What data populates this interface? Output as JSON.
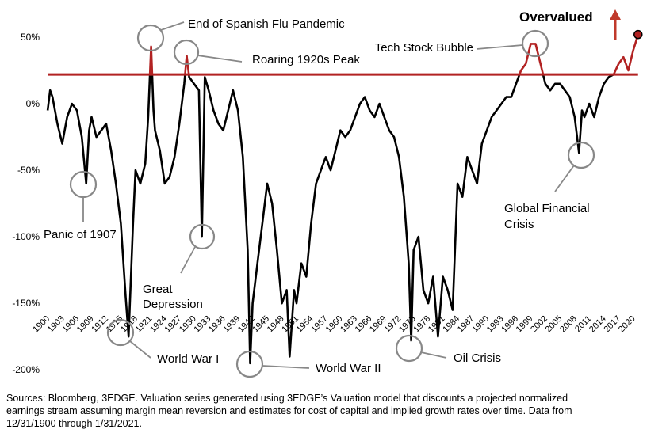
{
  "chart_data": {
    "type": "line",
    "x": [
      1900,
      1900.5,
      1901,
      1902,
      1903,
      1904,
      1905,
      1906,
      1907,
      1907.9,
      1908.5,
      1909,
      1910,
      1911,
      1912,
      1913,
      1914,
      1915,
      1916,
      1916.6,
      1917.5,
      1918,
      1919,
      1920,
      1920.6,
      1921.2,
      1921.7,
      1922,
      1923,
      1924,
      1925,
      1926,
      1927,
      1928,
      1928.5,
      1929,
      1930,
      1931,
      1931.6,
      1932.2,
      1933,
      1934,
      1935,
      1936,
      1937,
      1938,
      1939,
      1940,
      1941,
      1941.5,
      1942,
      1943,
      1944,
      1945,
      1946,
      1947,
      1948,
      1949,
      1949.6,
      1950.5,
      1951,
      1952,
      1953,
      1954,
      1955,
      1956,
      1957,
      1958,
      1959,
      1960,
      1961,
      1962,
      1963,
      1964,
      1965,
      1966,
      1967,
      1968,
      1969,
      1970,
      1971,
      1972,
      1973,
      1974,
      1974.5,
      1975,
      1976,
      1977,
      1978,
      1979,
      1980,
      1981,
      1982,
      1983,
      1984,
      1985,
      1986,
      1987,
      1988,
      1989,
      1990,
      1991,
      1992,
      1993,
      1994,
      1995,
      1996,
      1997,
      1998,
      1999,
      2000,
      2001,
      2002,
      2003,
      2004,
      2005,
      2006,
      2007,
      2008,
      2008.9,
      2009.5,
      2010,
      2011,
      2012,
      2013,
      2014,
      2015,
      2016,
      2017,
      2018,
      2019,
      2020,
      2021
    ],
    "series": [
      {
        "color": "#000000",
        "values": [
          -5,
          10,
          5,
          -15,
          -30,
          -10,
          0,
          -5,
          -25,
          -60,
          -20,
          -10,
          -25,
          -20,
          -15,
          -35,
          -60,
          -90,
          -145,
          -175,
          -90,
          -50,
          -60,
          -45,
          -10,
          43,
          -5,
          -20,
          -35,
          -60,
          -55,
          -40,
          -15,
          15,
          36,
          20,
          15,
          10,
          -100,
          20,
          10,
          -5,
          -15,
          -20,
          -5,
          10,
          -5,
          -40,
          -110,
          -195,
          -150,
          -120,
          -90,
          -60,
          -75,
          -110,
          -150,
          -140,
          -190,
          -140,
          -150,
          -120,
          -130,
          -90,
          -60,
          -50,
          -40,
          -50,
          -35,
          -20,
          -25,
          -20,
          -10,
          0,
          5,
          -5,
          -10,
          0,
          -10,
          -20,
          -25,
          -40,
          -70,
          -120,
          -178,
          -110,
          -100,
          -140,
          -150,
          -130,
          -175,
          -130,
          -140,
          -155,
          -60,
          -70,
          -40,
          -50,
          -60,
          -30,
          -20,
          -10,
          -5,
          0,
          5,
          5,
          15,
          25,
          30,
          45,
          45,
          30,
          15,
          10,
          15,
          15,
          10,
          5,
          -10,
          -37,
          -5,
          -10,
          0,
          -10,
          5,
          15,
          20,
          22,
          30,
          35,
          25,
          40,
          52
        ]
      }
    ],
    "threshold": 22,
    "threshold_color": "#b22222",
    "xlim": [
      1899.5,
      2022.5
    ],
    "xticks": [
      1900,
      1903,
      1906,
      1909,
      1912,
      1915,
      1918,
      1921,
      1924,
      1927,
      1930,
      1933,
      1936,
      1939,
      1942,
      1945,
      1948,
      1951,
      1954,
      1957,
      1960,
      1963,
      1966,
      1969,
      1972,
      1975,
      1978,
      1981,
      1984,
      1987,
      1990,
      1993,
      1996,
      1999,
      2002,
      2005,
      2008,
      2011,
      2014,
      2017,
      2020
    ],
    "ylim": [
      -210,
      75
    ],
    "yticks": [
      {
        "value": -200,
        "label": "-200%"
      },
      {
        "value": -150,
        "label": "-150%"
      },
      {
        "value": -100,
        "label": "-100%"
      },
      {
        "value": -50,
        "label": "-50%"
      },
      {
        "value": 0,
        "label": "0%"
      },
      {
        "value": 50,
        "label": "50%"
      }
    ],
    "annotations": {
      "panic": "Panic of 1907",
      "flu": "End of Spanish Flu Pandemic",
      "roaring": "Roaring 1920s Peak",
      "depression": [
        "Great",
        "Depression"
      ],
      "ww1": "World War I",
      "ww2": "World War II",
      "oil": "Oil Crisis",
      "tech": "Tech Stock Bubble",
      "gfc": [
        "Global Financial",
        "Crisis"
      ],
      "overvalued": "Overvalued"
    }
  },
  "footnote": [
    "Sources: Bloomberg, 3EDGE.  Valuation series generated using 3EDGE’s Valuation model that discounts a projected normalized",
    "earnings stream assuming margin mean reversion and estimates for cost of capital and implied growth rates over time. Data from",
    "12/31/1900 through 1/31/2021."
  ]
}
